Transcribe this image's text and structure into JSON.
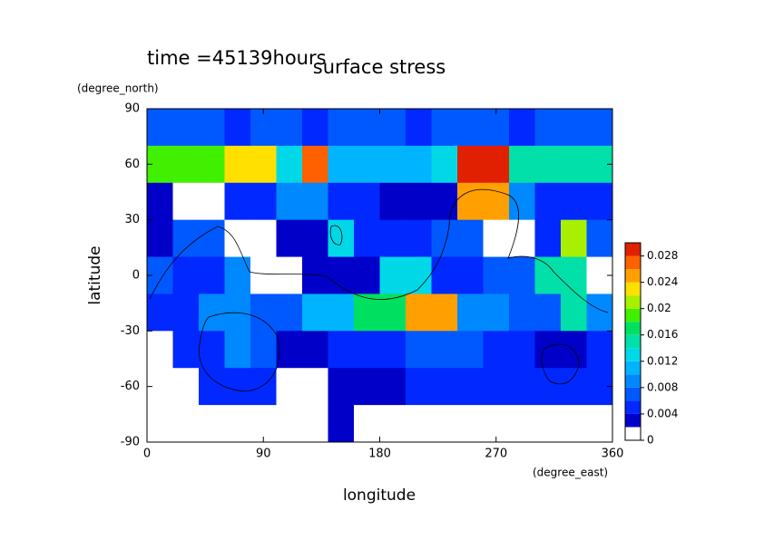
{
  "chart_data": {
    "type": "contour",
    "title": "surface stress",
    "subtitle": "time =45139hours",
    "x_label": "longitude",
    "y_label": "latitude",
    "x_unit": "(degree_east)",
    "y_unit": "(degree_north)",
    "xlim": [
      0,
      360
    ],
    "ylim": [
      -90,
      90
    ],
    "xticks": [
      0,
      90,
      180,
      270,
      360
    ],
    "yticks": [
      -90,
      -60,
      -30,
      0,
      30,
      60,
      90
    ],
    "lon": [
      10,
      30,
      50,
      70,
      90,
      110,
      130,
      150,
      170,
      190,
      210,
      230,
      250,
      270,
      290,
      310,
      330,
      350
    ],
    "lat": [
      80,
      60,
      40,
      20,
      0,
      -20,
      -40,
      -60,
      -80
    ],
    "z": [
      [
        0.006,
        0.006,
        0.006,
        0.005,
        0.006,
        0.006,
        0.004,
        0.006,
        0.006,
        0.006,
        0.005,
        0.006,
        0.006,
        0.006,
        0.005,
        0.006,
        0.006,
        0.006
      ],
      [
        0.018,
        0.018,
        0.018,
        0.022,
        0.022,
        0.012,
        0.026,
        0.01,
        0.01,
        0.01,
        0.01,
        0.012,
        0.028,
        0.028,
        0.014,
        0.014,
        0.014,
        0.014
      ],
      [
        0.003,
        0.001,
        0.001,
        0.004,
        0.004,
        0.008,
        0.008,
        0.004,
        0.004,
        0.003,
        0.003,
        0.003,
        0.024,
        0.024,
        0.008,
        0.004,
        0.004,
        0.004
      ],
      [
        0.002,
        0.006,
        0.006,
        0.001,
        0.001,
        0.002,
        0.002,
        0.012,
        0.004,
        0.004,
        0.004,
        0.006,
        0.006,
        0.001,
        0.001,
        0.004,
        0.02,
        0.006
      ],
      [
        0.006,
        0.004,
        0.004,
        0.008,
        0.001,
        0.001,
        0.003,
        0.003,
        0.003,
        0.012,
        0.012,
        0.004,
        0.004,
        0.006,
        0.006,
        0.014,
        0.014,
        0.001
      ],
      [
        0.005,
        0.005,
        0.008,
        0.008,
        0.006,
        0.006,
        0.01,
        0.01,
        0.016,
        0.016,
        0.024,
        0.024,
        0.008,
        0.008,
        0.006,
        0.006,
        0.014,
        0.008
      ],
      [
        0.001,
        0.004,
        0.004,
        0.008,
        0.006,
        0.002,
        0.002,
        0.004,
        0.004,
        0.004,
        0.006,
        0.006,
        0.006,
        0.005,
        0.005,
        0.003,
        0.003,
        0.004
      ],
      [
        0.001,
        0.001,
        0.004,
        0.004,
        0.004,
        0.001,
        0.001,
        0.003,
        0.002,
        0.002,
        0.005,
        0.005,
        0.005,
        0.005,
        0.005,
        0.005,
        0.005,
        0.005
      ],
      [
        0,
        0,
        0,
        0,
        0,
        0,
        0,
        0.003,
        0,
        0,
        0,
        0,
        0,
        0,
        0,
        0,
        0,
        0
      ]
    ],
    "zlim": [
      0,
      0.03
    ],
    "zticks": [
      0,
      0.004,
      0.008,
      0.012,
      0.016,
      0.02,
      0.024,
      0.028
    ],
    "colors": [
      "#ffffff",
      "#0000c8",
      "#0028ff",
      "#0058ff",
      "#0088ff",
      "#00b4ff",
      "#00d8e8",
      "#00e0a8",
      "#00e060",
      "#40f000",
      "#a8f000",
      "#ffe000",
      "#ffa000",
      "#ff6000",
      "#e02000"
    ]
  }
}
